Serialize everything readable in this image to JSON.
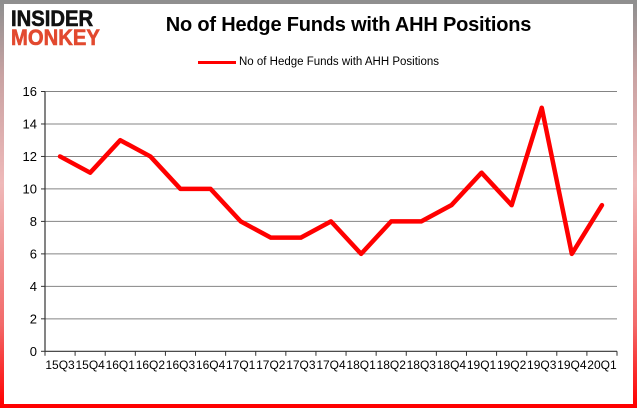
{
  "brand": {
    "line1": "INSIDER",
    "line2": "MONKEY"
  },
  "header": {
    "title": "No of Hedge Funds with AHH Positions"
  },
  "legend": {
    "label": "No of Hedge Funds with AHH Positions",
    "color": "#ff0000"
  },
  "colors": {
    "line": "#ff0000",
    "grid": "#848484",
    "axis": "#333333",
    "text": "#000000",
    "logo_red": "#e2492f"
  },
  "chart_data": {
    "type": "line",
    "title": "No of Hedge Funds with AHH Positions",
    "categories": [
      "15Q3",
      "15Q4",
      "16Q1",
      "16Q2",
      "16Q3",
      "16Q4",
      "17Q1",
      "17Q2",
      "17Q3",
      "17Q4",
      "18Q1",
      "18Q2",
      "18Q3",
      "18Q4",
      "19Q1",
      "19Q2",
      "19Q3",
      "19Q4",
      "20Q1"
    ],
    "series": [
      {
        "name": "No of Hedge Funds with AHH Positions",
        "color": "#ff0000",
        "values": [
          12,
          11,
          13,
          12,
          10,
          10,
          8,
          7,
          7,
          8,
          6,
          8,
          8,
          9,
          11,
          9,
          15,
          6,
          9
        ]
      }
    ],
    "xlabel": "",
    "ylabel": "",
    "ylim": [
      0,
      16
    ],
    "ytick_step": 2,
    "grid": true,
    "legend_position": "top"
  }
}
